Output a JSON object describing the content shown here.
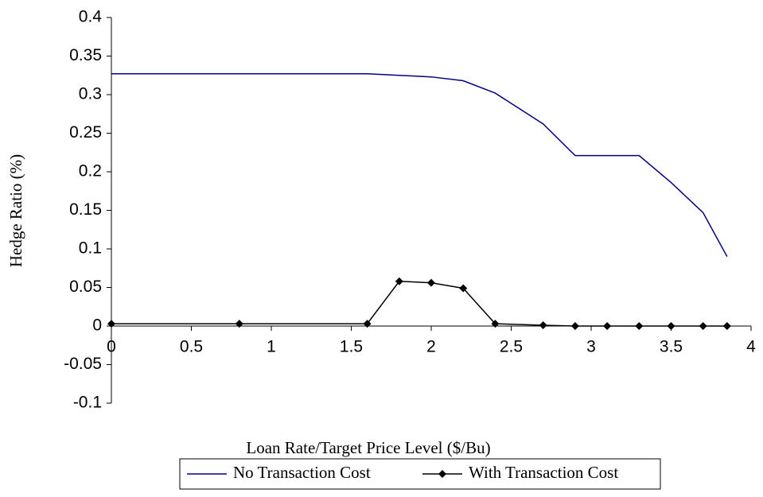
{
  "chart_data": {
    "type": "line",
    "x_label": "Loan Rate/Target Price Level ($/Bu)",
    "y_label": "Hedge Ratio (%)",
    "x": [
      0,
      0.8,
      1.6,
      1.8,
      2.0,
      2.2,
      2.4,
      2.7,
      2.9,
      3.1,
      3.3,
      3.5,
      3.7,
      3.85
    ],
    "series": [
      {
        "name": "No Transaction Cost",
        "color": "#000080",
        "marker": "none",
        "values": [
          0.327,
          0.327,
          0.327,
          0.325,
          0.323,
          0.318,
          0.302,
          0.262,
          0.221,
          0.221,
          0.221,
          0.186,
          0.147,
          0.09
        ]
      },
      {
        "name": "With Transaction Cost",
        "color": "#000000",
        "marker": "diamond",
        "values": [
          0.003,
          0.003,
          0.003,
          0.058,
          0.056,
          0.049,
          0.003,
          0.001,
          0,
          0,
          0,
          0,
          0,
          0
        ]
      }
    ],
    "xlim": [
      0,
      4
    ],
    "xticks": [
      0,
      0.5,
      1,
      1.5,
      2,
      2.5,
      3,
      3.5,
      4
    ],
    "ylim": [
      -0.1,
      0.4
    ],
    "yticks": [
      -0.1,
      -0.05,
      0,
      0.05,
      0.1,
      0.15,
      0.2,
      0.25,
      0.3,
      0.35,
      0.4
    ],
    "grid": false,
    "legend": "bottom"
  }
}
